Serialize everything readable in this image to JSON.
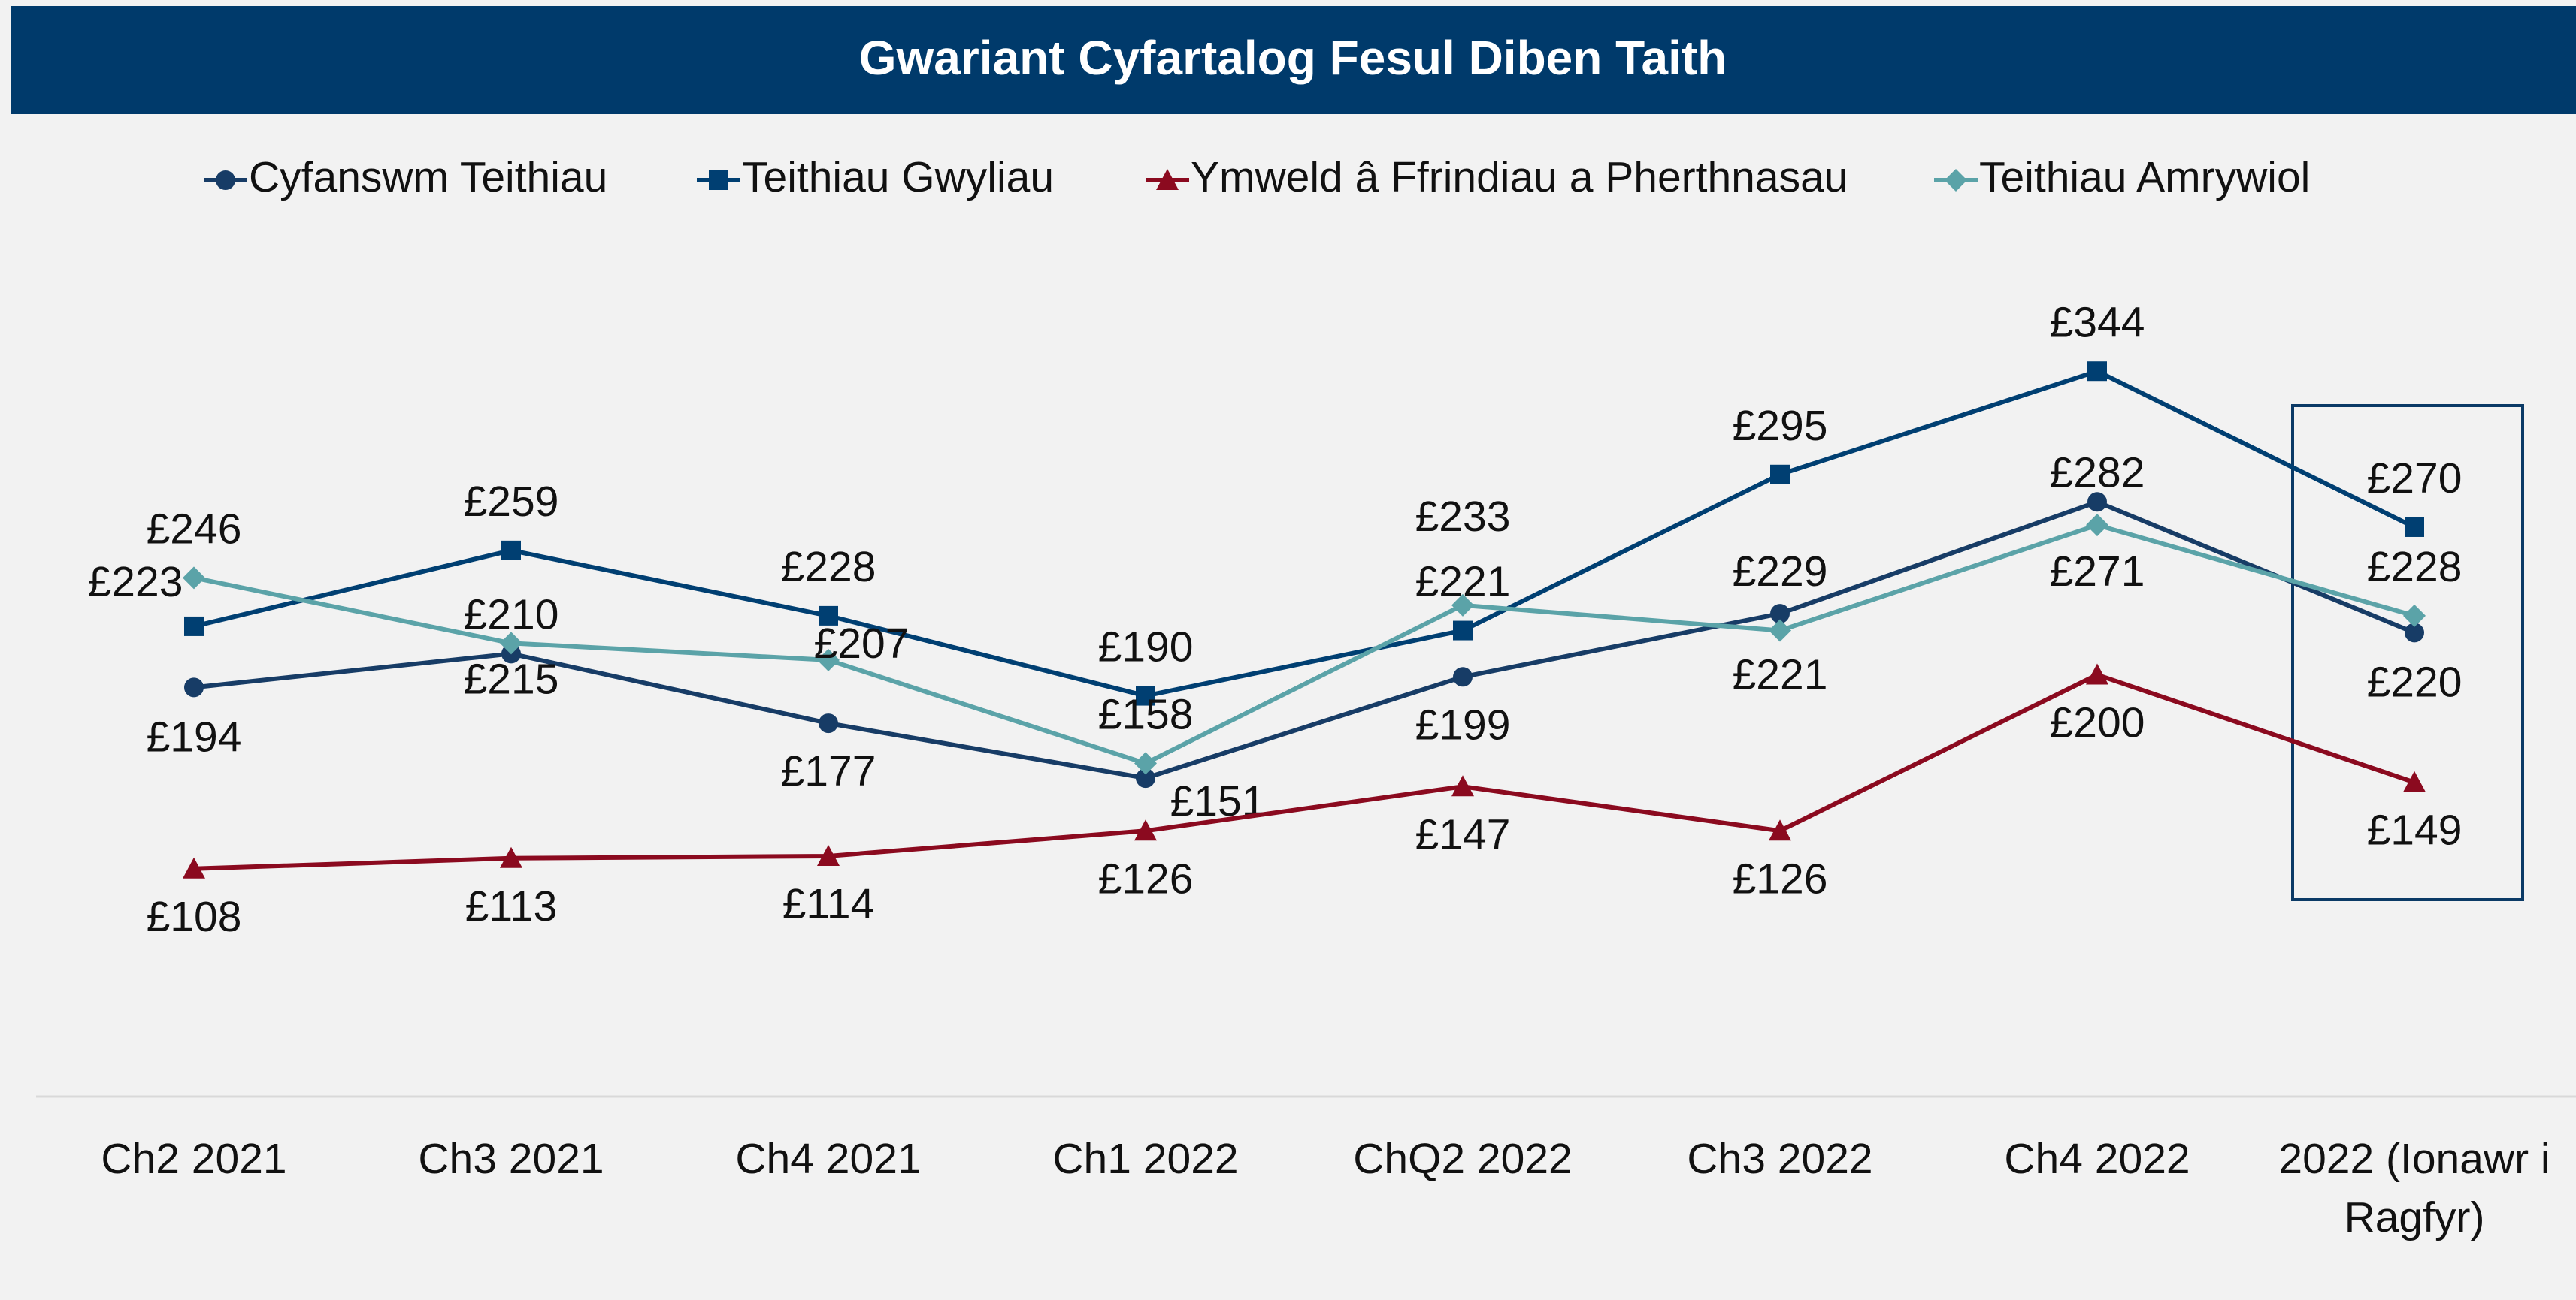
{
  "chart_data": {
    "type": "line",
    "title": "Gwariant Cyfartalog Fesul Diben Taith",
    "categories": [
      "Ch2 2021",
      "Ch3 2021",
      "Ch4 2021",
      "Ch1 2022",
      "ChQ2 2022",
      "Ch3 2022",
      "Ch4 2022",
      "2022 (Ionawr i Ragfyr)"
    ],
    "ylim": [
      0,
      400
    ],
    "grid": false,
    "legend": "top",
    "series": [
      {
        "name": "Cyfanswm Teithiau",
        "color": "#173c66",
        "marker": "circle",
        "values": [
          194,
          210,
          177,
          151,
          199,
          229,
          282,
          220
        ],
        "value_labels": [
          "£194",
          "£210",
          "£177",
          "£151",
          "£199",
          "£229",
          "£282",
          "£220"
        ]
      },
      {
        "name": "Teithiau Gwyliau",
        "color": "#003f72",
        "marker": "square",
        "values": [
          223,
          259,
          228,
          190,
          221,
          295,
          344,
          270
        ],
        "value_labels": [
          "£223",
          "£259",
          "£228",
          "£190",
          "£221",
          "£295",
          "£344",
          "£270"
        ]
      },
      {
        "name": "Ymweld â Ffrindiau a Pherthnasau",
        "color": "#8b0a1f",
        "marker": "triangle",
        "values": [
          108,
          113,
          114,
          126,
          147,
          126,
          200,
          149
        ],
        "value_labels": [
          "£108",
          "£113",
          "£114",
          "£126",
          "£147",
          "£126",
          "£200",
          "£149"
        ]
      },
      {
        "name": "Teithiau Amrywiol",
        "color": "#5ba3a8",
        "marker": "diamond",
        "values": [
          246,
          215,
          207,
          158,
          233,
          221,
          271,
          228
        ],
        "value_labels": [
          "£246",
          "£215",
          "£207",
          "£158",
          "£233",
          "£221",
          "£271",
          "£228"
        ]
      }
    ]
  }
}
